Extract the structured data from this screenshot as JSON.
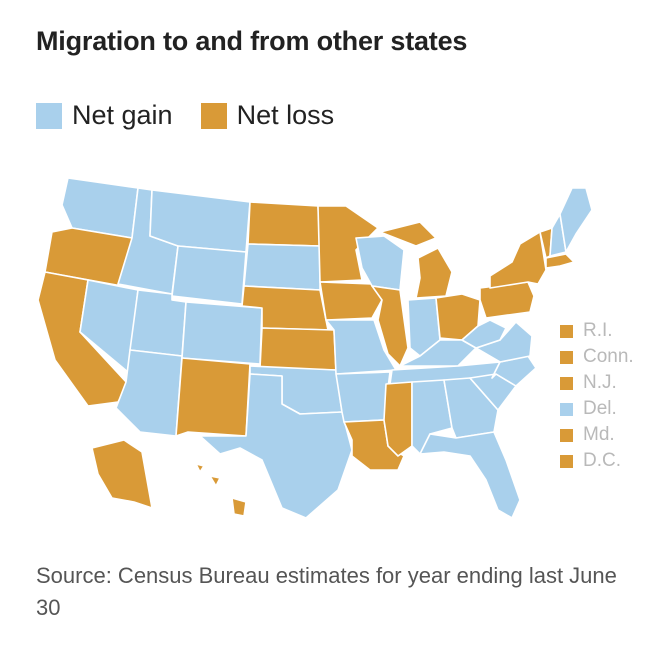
{
  "title": "Migration to and from other states",
  "legend": [
    {
      "label": "Net gain",
      "color": "#a9d0ec"
    },
    {
      "label": "Net loss",
      "color": "#d99a37"
    }
  ],
  "colors": {
    "gain": "#a9d0ec",
    "loss": "#d99a37"
  },
  "small_states": [
    {
      "label": "R.I.",
      "status": "loss"
    },
    {
      "label": "Conn.",
      "status": "loss"
    },
    {
      "label": "N.J.",
      "status": "loss"
    },
    {
      "label": "Del.",
      "status": "gain"
    },
    {
      "label": "Md.",
      "status": "loss"
    },
    {
      "label": "D.C.",
      "status": "loss"
    }
  ],
  "states": [
    {
      "name": "WA",
      "status": "gain"
    },
    {
      "name": "OR",
      "status": "loss"
    },
    {
      "name": "CA",
      "status": "loss"
    },
    {
      "name": "ID",
      "status": "gain"
    },
    {
      "name": "NV",
      "status": "gain"
    },
    {
      "name": "MT",
      "status": "gain"
    },
    {
      "name": "WY",
      "status": "gain"
    },
    {
      "name": "UT",
      "status": "gain"
    },
    {
      "name": "AZ",
      "status": "gain"
    },
    {
      "name": "CO",
      "status": "gain"
    },
    {
      "name": "NM",
      "status": "loss"
    },
    {
      "name": "ND",
      "status": "loss"
    },
    {
      "name": "SD",
      "status": "gain"
    },
    {
      "name": "NE",
      "status": "loss"
    },
    {
      "name": "KS",
      "status": "loss"
    },
    {
      "name": "OK",
      "status": "gain"
    },
    {
      "name": "TX",
      "status": "gain"
    },
    {
      "name": "MN",
      "status": "loss"
    },
    {
      "name": "IA",
      "status": "loss"
    },
    {
      "name": "MO",
      "status": "gain"
    },
    {
      "name": "AR",
      "status": "gain"
    },
    {
      "name": "LA",
      "status": "loss"
    },
    {
      "name": "WI",
      "status": "gain"
    },
    {
      "name": "IL",
      "status": "loss"
    },
    {
      "name": "MI",
      "status": "loss"
    },
    {
      "name": "IN",
      "status": "gain"
    },
    {
      "name": "OH",
      "status": "loss"
    },
    {
      "name": "KY",
      "status": "gain"
    },
    {
      "name": "TN",
      "status": "gain"
    },
    {
      "name": "MS",
      "status": "loss"
    },
    {
      "name": "AL",
      "status": "gain"
    },
    {
      "name": "GA",
      "status": "gain"
    },
    {
      "name": "FL",
      "status": "gain"
    },
    {
      "name": "SC",
      "status": "gain"
    },
    {
      "name": "NC",
      "status": "gain"
    },
    {
      "name": "VA",
      "status": "gain"
    },
    {
      "name": "WV",
      "status": "gain"
    },
    {
      "name": "PA",
      "status": "loss"
    },
    {
      "name": "NY",
      "status": "loss"
    },
    {
      "name": "VT",
      "status": "loss"
    },
    {
      "name": "NH",
      "status": "gain"
    },
    {
      "name": "ME",
      "status": "gain"
    },
    {
      "name": "MA",
      "status": "loss"
    },
    {
      "name": "AK",
      "status": "loss"
    },
    {
      "name": "HI",
      "status": "loss"
    }
  ],
  "source": "Source: Census Bureau estimates for year ending last June 30"
}
